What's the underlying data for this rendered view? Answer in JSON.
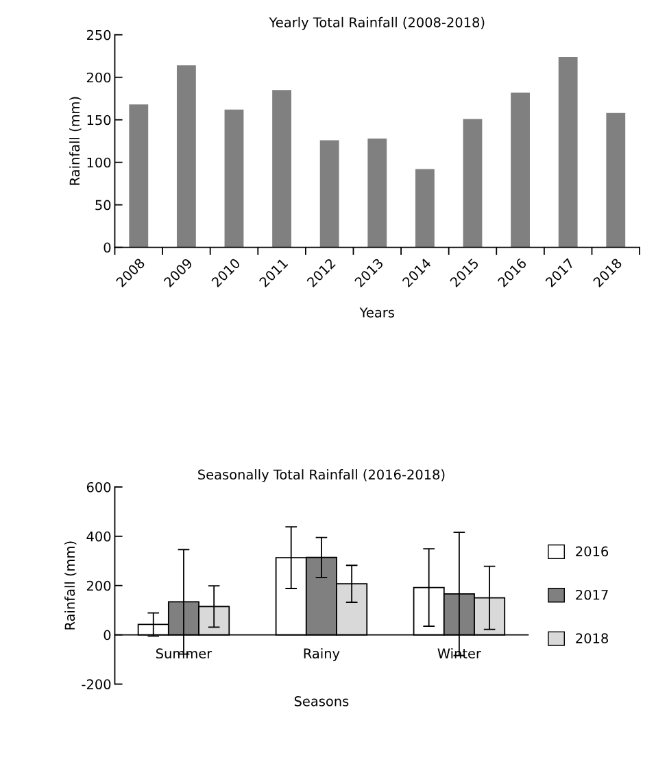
{
  "chart_data": [
    {
      "type": "bar",
      "title": "Yearly Total Rainfall (2008-2018)",
      "xlabel": "Years",
      "ylabel": "Rainfall (mm)",
      "categories": [
        "2008",
        "2009",
        "2010",
        "2011",
        "2012",
        "2013",
        "2014",
        "2015",
        "2016",
        "2017",
        "2018"
      ],
      "values": [
        168,
        214,
        162,
        185,
        126,
        128,
        92,
        151,
        182,
        224,
        158
      ],
      "color": "#808080",
      "ylim": [
        0,
        250
      ],
      "yticks": [
        0,
        50,
        100,
        150,
        200,
        250
      ],
      "grid": false,
      "legend": false
    },
    {
      "type": "bar",
      "title": "Seasonally Total Rainfall (2016-2018)",
      "xlabel": "Seasons",
      "ylabel": "Rainfall (mm)",
      "categories": [
        "Summer",
        "Rainy",
        "Winter"
      ],
      "series": [
        {
          "name": "2016",
          "color": "#ffffff",
          "values": [
            42,
            313,
            192
          ],
          "errors": [
            47,
            125,
            157
          ]
        },
        {
          "name": "2017",
          "color": "#808080",
          "values": [
            134,
            314,
            166
          ],
          "errors": [
            212,
            81,
            250
          ]
        },
        {
          "name": "2018",
          "color": "#d9d9d9",
          "values": [
            115,
            207,
            150
          ],
          "errors": [
            84,
            75,
            128
          ]
        }
      ],
      "ylim": [
        -200,
        600
      ],
      "yticks": [
        -200,
        0,
        200,
        400,
        600
      ],
      "grid": false,
      "legend": "right"
    }
  ]
}
